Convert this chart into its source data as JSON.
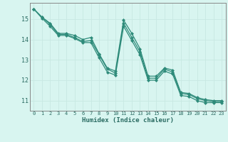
{
  "xlabel": "Humidex (Indice chaleur)",
  "ylabel": "",
  "x": [
    0,
    1,
    2,
    3,
    4,
    5,
    6,
    7,
    8,
    9,
    10,
    11,
    12,
    13,
    14,
    15,
    16,
    17,
    18,
    19,
    20,
    21,
    22,
    23
  ],
  "line1": [
    15.5,
    15.1,
    14.8,
    14.3,
    14.3,
    14.2,
    14.0,
    14.1,
    13.3,
    12.6,
    12.45,
    14.95,
    14.3,
    13.55,
    12.2,
    12.2,
    12.6,
    12.5,
    11.4,
    11.35,
    11.15,
    11.05,
    11.0,
    11.0
  ],
  "line2": [
    15.5,
    15.1,
    14.75,
    14.25,
    14.25,
    14.1,
    13.9,
    13.95,
    13.25,
    12.55,
    12.35,
    14.8,
    14.1,
    13.4,
    12.1,
    12.1,
    12.55,
    12.4,
    11.35,
    11.3,
    11.1,
    11.0,
    10.95,
    10.95
  ],
  "line3": [
    15.5,
    15.05,
    14.65,
    14.2,
    14.2,
    14.05,
    13.85,
    13.85,
    13.1,
    12.4,
    12.25,
    14.65,
    13.95,
    13.25,
    12.0,
    12.0,
    12.45,
    12.3,
    11.25,
    11.2,
    11.0,
    10.9,
    10.9,
    10.9
  ],
  "line_color": "#2e8b7a",
  "bg_color": "#d8f5f0",
  "grid_color_major": "#c8e8e2",
  "grid_color_minor": "#c8e8e2",
  "ylim": [
    10.5,
    15.8
  ],
  "yticks": [
    11,
    12,
    13,
    14,
    15
  ],
  "marker": "D",
  "markersize": 2.0,
  "linewidth": 0.9
}
